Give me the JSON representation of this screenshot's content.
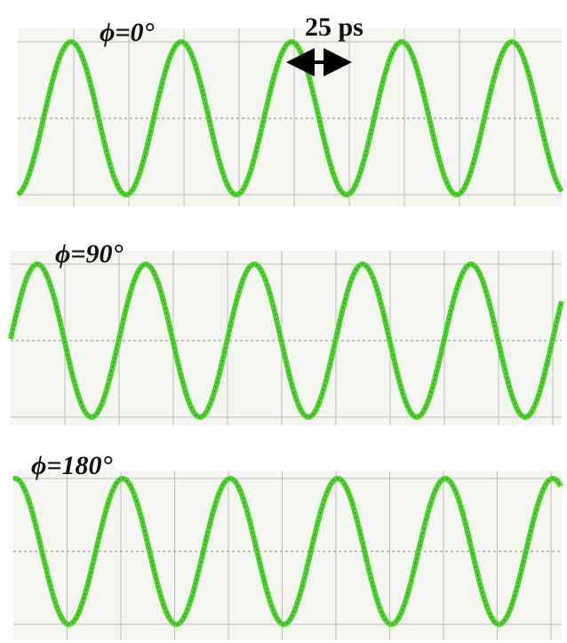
{
  "panels": [
    {
      "label": "ϕ=0°"
    },
    {
      "label": "ϕ=90°"
    },
    {
      "label": "ϕ=180°"
    }
  ],
  "annotation": "25 ps"
}
